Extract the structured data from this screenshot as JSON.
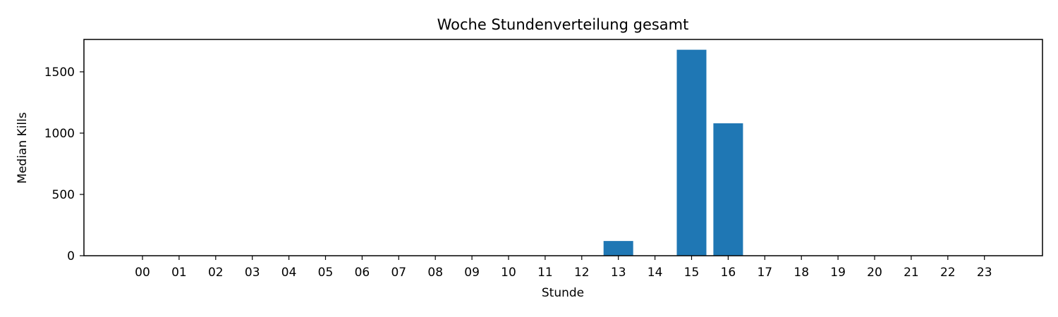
{
  "chart_data": {
    "type": "bar",
    "title": "Woche Stundenverteilung gesamt",
    "xlabel": "Stunde",
    "ylabel": "Median Kills",
    "categories": [
      "00",
      "01",
      "02",
      "03",
      "04",
      "05",
      "06",
      "07",
      "08",
      "09",
      "10",
      "11",
      "12",
      "13",
      "14",
      "15",
      "16",
      "17",
      "18",
      "19",
      "20",
      "21",
      "22",
      "23"
    ],
    "values": [
      0,
      0,
      0,
      0,
      0,
      0,
      0,
      0,
      0,
      0,
      0,
      0,
      0,
      120,
      0,
      1680,
      1080,
      0,
      0,
      0,
      0,
      0,
      0,
      0
    ],
    "yticks": [
      0,
      500,
      1000,
      1500
    ],
    "ylim": [
      0,
      1764
    ],
    "grid": false,
    "legend": "none",
    "bar_color": "#1f77b4"
  }
}
